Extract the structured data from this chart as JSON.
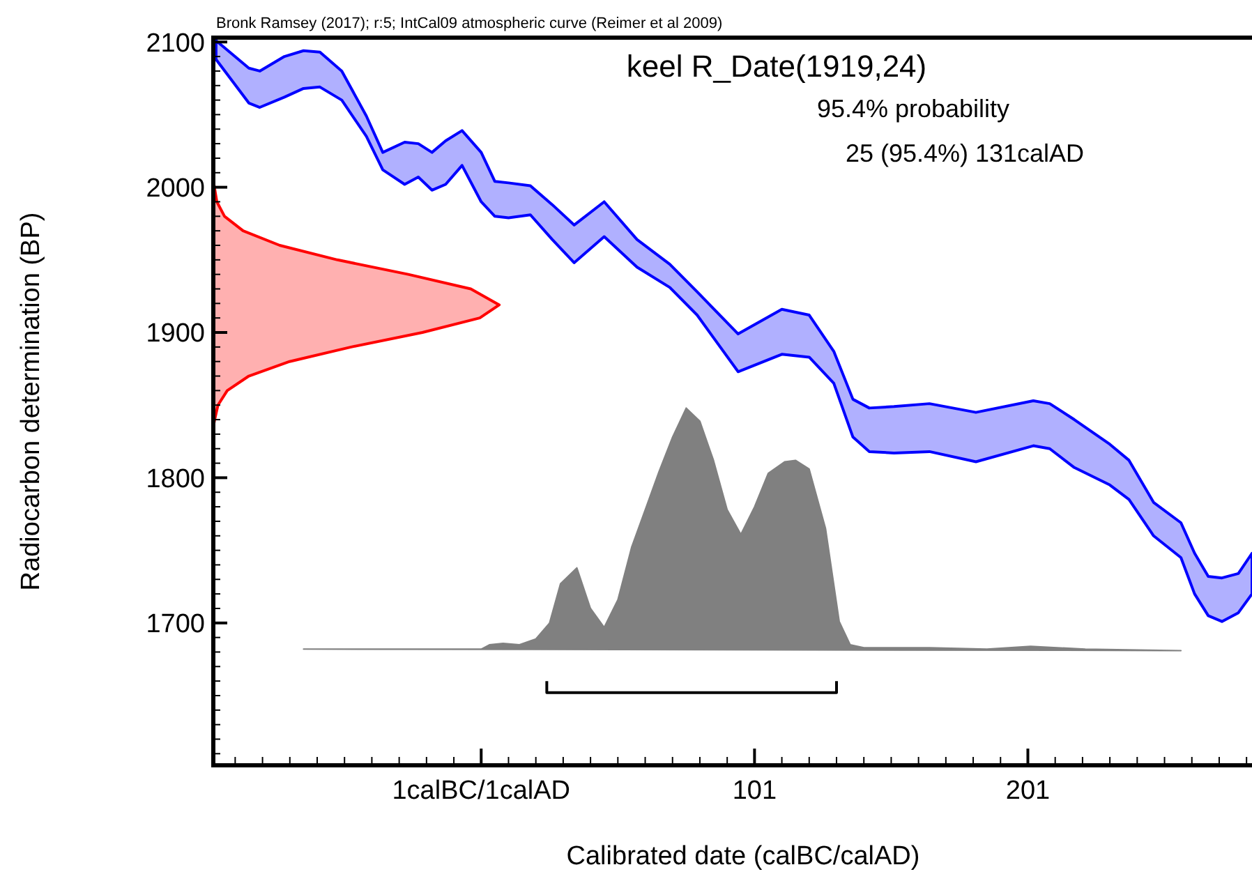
{
  "chart_data": {
    "type": "area",
    "title": "keel R_Date(1919,24)",
    "subtitle": "95.4% probability",
    "annotations": [
      "25 (95.4%) 131calAD",
      "Bronk Ramsey (2017); r:5; IntCal09 atmospheric curve (Reimer et al 2009)"
    ],
    "xlabel": "Calibrated date (calBC/calAD)",
    "ylabel": "Radiocarbon determination (BP)",
    "xlim": [
      -97,
      283
    ],
    "ylim": [
      1602,
      2103
    ],
    "xticks": [
      {
        "value": -89,
        "label": null
      },
      {
        "value": -79,
        "label": null
      },
      {
        "value": -69,
        "label": null
      },
      {
        "value": -59,
        "label": null
      },
      {
        "value": -49,
        "label": null
      },
      {
        "value": -39,
        "label": null
      },
      {
        "value": -29,
        "label": null
      },
      {
        "value": -19,
        "label": null
      },
      {
        "value": -9,
        "label": null
      },
      {
        "value": 1,
        "label": "1calBC/1calAD"
      },
      {
        "value": 11,
        "label": null
      },
      {
        "value": 21,
        "label": null
      },
      {
        "value": 31,
        "label": null
      },
      {
        "value": 41,
        "label": null
      },
      {
        "value": 51,
        "label": null
      },
      {
        "value": 61,
        "label": null
      },
      {
        "value": 71,
        "label": null
      },
      {
        "value": 81,
        "label": null
      },
      {
        "value": 91,
        "label": null
      },
      101,
      {
        "value": 111,
        "label": null
      },
      {
        "value": 121,
        "label": null
      },
      {
        "value": 131,
        "label": null
      },
      {
        "value": 141,
        "label": null
      },
      {
        "value": 151,
        "label": null
      },
      {
        "value": 161,
        "label": null
      },
      {
        "value": 171,
        "label": null
      },
      {
        "value": 181,
        "label": null
      },
      {
        "value": 191,
        "label": null
      },
      201,
      {
        "value": 211,
        "label": null
      },
      {
        "value": 221,
        "label": null
      },
      {
        "value": 231,
        "label": null
      },
      {
        "value": 241,
        "label": null
      },
      {
        "value": 251,
        "label": null
      },
      {
        "value": 261,
        "label": null
      },
      {
        "value": 271,
        "label": null
      },
      {
        "value": 281,
        "label": null
      }
    ],
    "yticks": [
      {
        "value": 1610,
        "label": null
      },
      {
        "value": 1620,
        "label": null
      },
      {
        "value": 1630,
        "label": null
      },
      {
        "value": 1640,
        "label": null
      },
      {
        "value": 1650,
        "label": null
      },
      {
        "value": 1660,
        "label": null
      },
      {
        "value": 1670,
        "label": null
      },
      {
        "value": 1680,
        "label": null
      },
      {
        "value": 1690,
        "label": null
      },
      1700,
      {
        "value": 1710,
        "label": null
      },
      {
        "value": 1720,
        "label": null
      },
      {
        "value": 1730,
        "label": null
      },
      {
        "value": 1740,
        "label": null
      },
      {
        "value": 1750,
        "label": null
      },
      {
        "value": 1760,
        "label": null
      },
      {
        "value": 1770,
        "label": null
      },
      {
        "value": 1780,
        "label": null
      },
      {
        "value": 1790,
        "label": null
      },
      1800,
      {
        "value": 1810,
        "label": null
      },
      {
        "value": 1820,
        "label": null
      },
      {
        "value": 1830,
        "label": null
      },
      {
        "value": 1840,
        "label": null
      },
      {
        "value": 1850,
        "label": null
      },
      {
        "value": 1860,
        "label": null
      },
      {
        "value": 1870,
        "label": null
      },
      {
        "value": 1880,
        "label": null
      },
      {
        "value": 1890,
        "label": null
      },
      1900,
      {
        "value": 1910,
        "label": null
      },
      {
        "value": 1920,
        "label": null
      },
      {
        "value": 1930,
        "label": null
      },
      {
        "value": 1940,
        "label": null
      },
      {
        "value": 1950,
        "label": null
      },
      {
        "value": 1960,
        "label": null
      },
      {
        "value": 1970,
        "label": null
      },
      {
        "value": 1980,
        "label": null
      },
      {
        "value": 1990,
        "label": null
      },
      2000,
      {
        "value": 2010,
        "label": null
      },
      {
        "value": 2020,
        "label": null
      },
      {
        "value": 2030,
        "label": null
      },
      {
        "value": 2040,
        "label": null
      },
      {
        "value": 2050,
        "label": null
      },
      {
        "value": 2060,
        "label": null
      },
      {
        "value": 2070,
        "label": null
      },
      {
        "value": 2080,
        "label": null
      },
      {
        "value": 2090,
        "label": null
      },
      2100
    ],
    "series": [
      {
        "color": "#0000ff",
        "line_style": "solid",
        "x": [
          -96,
          -84,
          -80,
          -71,
          -64,
          -58,
          -50,
          -41,
          -35,
          -27,
          -22,
          -17,
          -12,
          -6,
          1,
          6,
          11,
          19,
          27,
          35,
          46,
          58,
          70,
          80,
          95,
          111,
          121,
          130,
          137,
          143,
          152,
          165,
          182,
          203,
          209,
          218,
          231,
          238,
          247,
          257,
          262,
          267,
          272,
          278,
          283,
          283,
          278,
          272,
          267,
          262,
          257,
          247,
          238,
          231,
          218,
          209,
          203,
          182,
          165,
          152,
          143,
          137,
          130,
          121,
          111,
          95,
          80,
          70,
          58,
          46,
          35,
          27,
          19,
          11,
          6,
          1,
          -6,
          -12,
          -17,
          -22,
          -27,
          -35,
          -41,
          -50,
          -58,
          -64,
          -71,
          -80,
          -84,
          -96
        ],
        "values": [
          2101,
          2082,
          2080,
          2090,
          2094,
          2093,
          2080,
          2049,
          2024,
          2031,
          2030,
          2024,
          2032,
          2039,
          2024,
          2004,
          2003,
          2001,
          1988,
          1974,
          1990,
          1964,
          1947,
          1928,
          1899,
          1916,
          1912,
          1887,
          1854,
          1848,
          1849,
          1851,
          1845,
          1853,
          1851,
          1840,
          1823,
          1812,
          1783,
          1769,
          1748,
          1732,
          1731,
          1734,
          1748,
          1720,
          1707,
          1701,
          1705,
          1720,
          1745,
          1760,
          1785,
          1795,
          1807,
          1820,
          1822,
          1811,
          1818,
          1817,
          1818,
          1828,
          1865,
          1883,
          1885,
          1873,
          1912,
          1931,
          1945,
          1966,
          1948,
          1964,
          1981,
          1979,
          1980,
          1990,
          2015,
          2002,
          1998,
          2007,
          2002,
          2012,
          2035,
          2060,
          2069,
          2068,
          2062,
          2055,
          2058,
          2088
        ]
      },
      {
        "color": "#ff0000",
        "line_style": "solid",
        "x": [
          -97,
          -96.5,
          -95.3,
          -91.9,
          -84,
          -69.1,
          -46.6,
          -20.5,
          0.5,
          7.6,
          -2.8,
          -25.7,
          -51.6,
          -72.7,
          -86.1,
          -92.9,
          -95.7,
          -96.6,
          -97
        ],
        "values": [
          1835,
          1840,
          1850,
          1860,
          1870,
          1880,
          1890,
          1900,
          1910,
          1919,
          1930,
          1940,
          1950,
          1960,
          1970,
          1980,
          1990,
          2000,
          2005
        ]
      },
      {
        "color": "#808080",
        "line_style": "solid",
        "x": [
          -64,
          -20,
          1,
          4,
          9,
          15,
          21,
          26,
          30,
          36,
          41,
          46,
          51,
          56,
          61,
          66,
          71,
          76,
          81,
          86,
          91,
          96,
          101,
          106,
          112,
          116,
          121,
          127,
          132,
          136,
          141,
          165,
          186,
          202,
          222,
          257
        ],
        "values": [
          1682,
          1682,
          1682,
          1685,
          1686,
          1685,
          1689,
          1700,
          1727,
          1738,
          1710,
          1697,
          1716,
          1752,
          1778,
          1804,
          1828,
          1848,
          1839,
          1812,
          1778,
          1761,
          1780,
          1803,
          1811,
          1812,
          1806,
          1765,
          1701,
          1685,
          1683,
          1683,
          1682,
          1684,
          1682,
          1681
        ]
      },
      {
        "type": "line",
        "color": "#000000",
        "x": [
          25,
          25,
          131,
          131
        ],
        "values": [
          1660,
          1652,
          1652,
          1660
        ]
      }
    ]
  }
}
